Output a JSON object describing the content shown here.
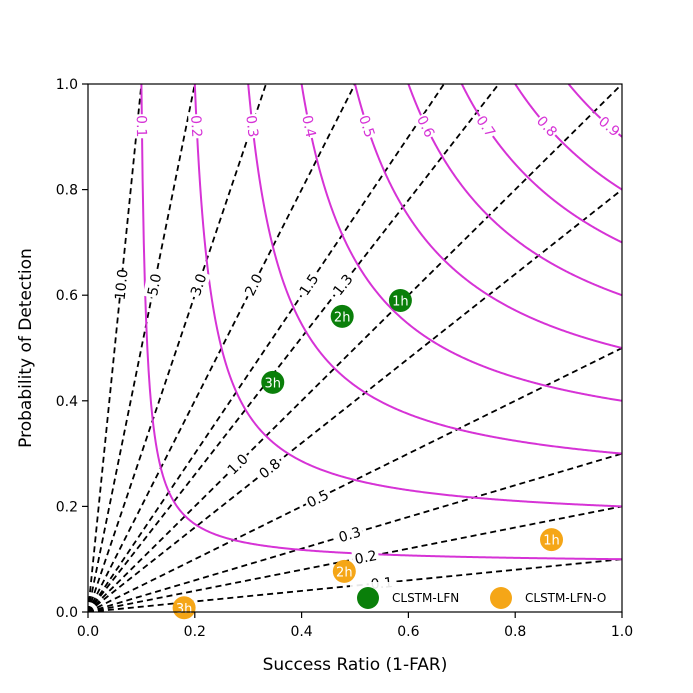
{
  "chart_data": {
    "type": "scatter",
    "xlabel": "Success Ratio (1-FAR)",
    "ylabel": "Probability of Detection",
    "xlim": [
      0,
      1
    ],
    "ylim": [
      0,
      1
    ],
    "x_ticks": [
      "0.0",
      "0.2",
      "0.4",
      "0.6",
      "0.8",
      "1.0"
    ],
    "y_ticks": [
      "0.0",
      "0.2",
      "0.4",
      "0.6",
      "0.8",
      "1.0"
    ],
    "csi_lines": [
      {
        "value": 0.1,
        "label": "0.1"
      },
      {
        "value": 0.2,
        "label": "0.2"
      },
      {
        "value": 0.3,
        "label": "0.3"
      },
      {
        "value": 0.4,
        "label": "0.4"
      },
      {
        "value": 0.5,
        "label": "0.5"
      },
      {
        "value": 0.6,
        "label": "0.6"
      },
      {
        "value": 0.7,
        "label": "0.7"
      },
      {
        "value": 0.8,
        "label": "0.8"
      },
      {
        "value": 0.9,
        "label": "0.9"
      }
    ],
    "bias_lines": [
      {
        "value": 0.1,
        "label": "0.1"
      },
      {
        "value": 0.2,
        "label": "0.2"
      },
      {
        "value": 0.3,
        "label": "0.3"
      },
      {
        "value": 0.5,
        "label": "0.5"
      },
      {
        "value": 0.8,
        "label": "0.8"
      },
      {
        "value": 1.0,
        "label": "1.0"
      },
      {
        "value": 1.3,
        "label": "1.3"
      },
      {
        "value": 1.5,
        "label": "1.5"
      },
      {
        "value": 2.0,
        "label": "2.0"
      },
      {
        "value": 3.0,
        "label": "3.0"
      },
      {
        "value": 5.0,
        "label": "5.0"
      },
      {
        "value": 10.0,
        "label": "10.0"
      }
    ],
    "series": [
      {
        "name": "CLSTM-LFN",
        "color": "#0a7f0a",
        "points": [
          {
            "x": 0.585,
            "y": 0.59,
            "label": "1h"
          },
          {
            "x": 0.476,
            "y": 0.56,
            "label": "2h"
          },
          {
            "x": 0.346,
            "y": 0.435,
            "label": "3h"
          }
        ]
      },
      {
        "name": "CLSTM-LFN-O",
        "color": "#f5a617",
        "points": [
          {
            "x": 0.868,
            "y": 0.137,
            "label": "1h"
          },
          {
            "x": 0.48,
            "y": 0.077,
            "label": "2h"
          },
          {
            "x": 0.18,
            "y": 0.008,
            "label": "3h"
          }
        ]
      }
    ],
    "csi_color": "#d633d6",
    "legend_position": "lower-right"
  }
}
